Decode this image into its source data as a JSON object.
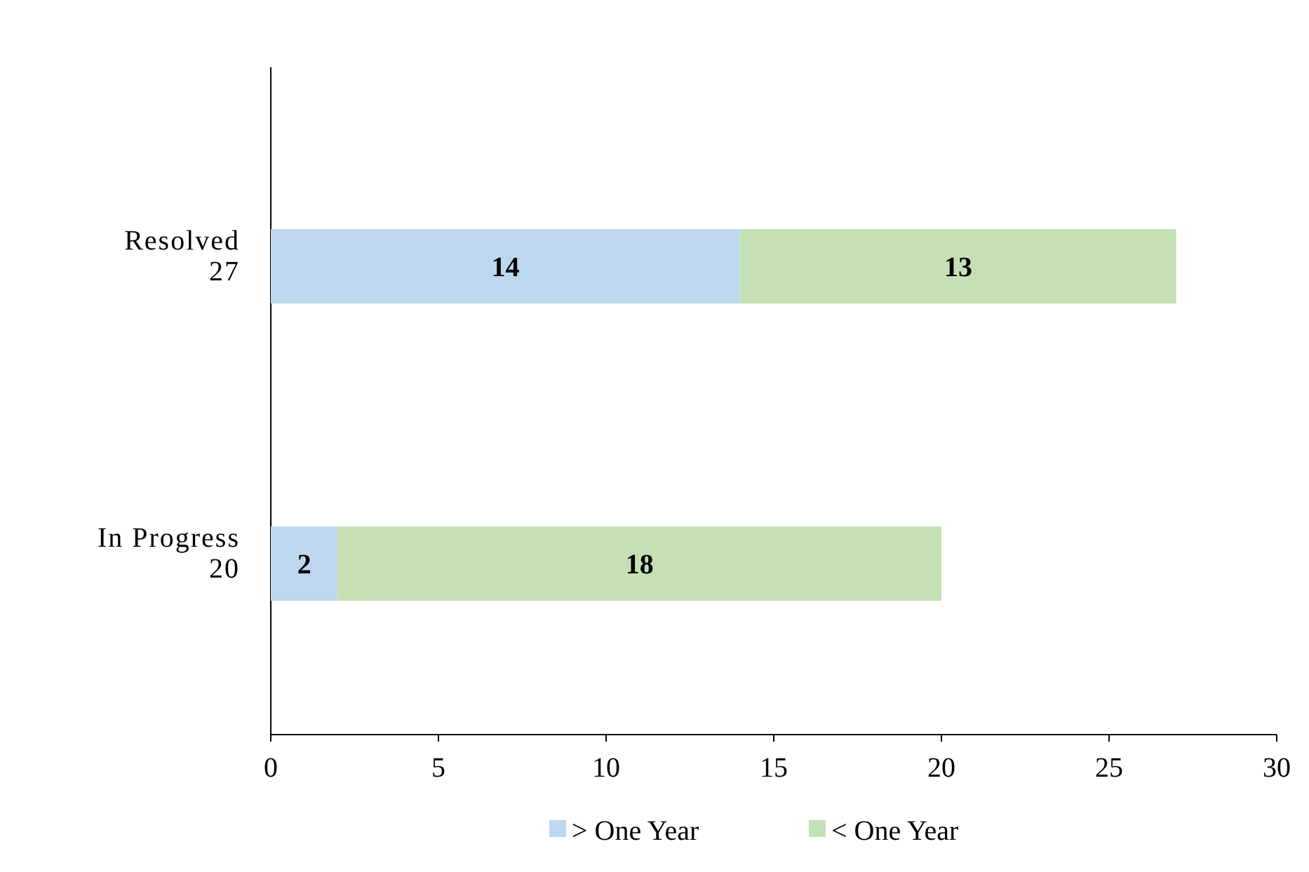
{
  "chart_data": {
    "type": "bar",
    "orientation": "horizontal",
    "stacked": true,
    "categories": [
      "Resolved\n27",
      "In Progress\n20"
    ],
    "series": [
      {
        "name": "> One Year",
        "color": "#bdd7ee",
        "values": [
          14,
          2
        ]
      },
      {
        "name": "< One Year",
        "color": "#c5e0b4",
        "values": [
          13,
          18
        ]
      }
    ],
    "xlim": [
      0,
      30
    ],
    "xticks": [
      0,
      5,
      10,
      15,
      20,
      25,
      30
    ],
    "data_labels": true,
    "legend": "bottom",
    "grid": false
  }
}
